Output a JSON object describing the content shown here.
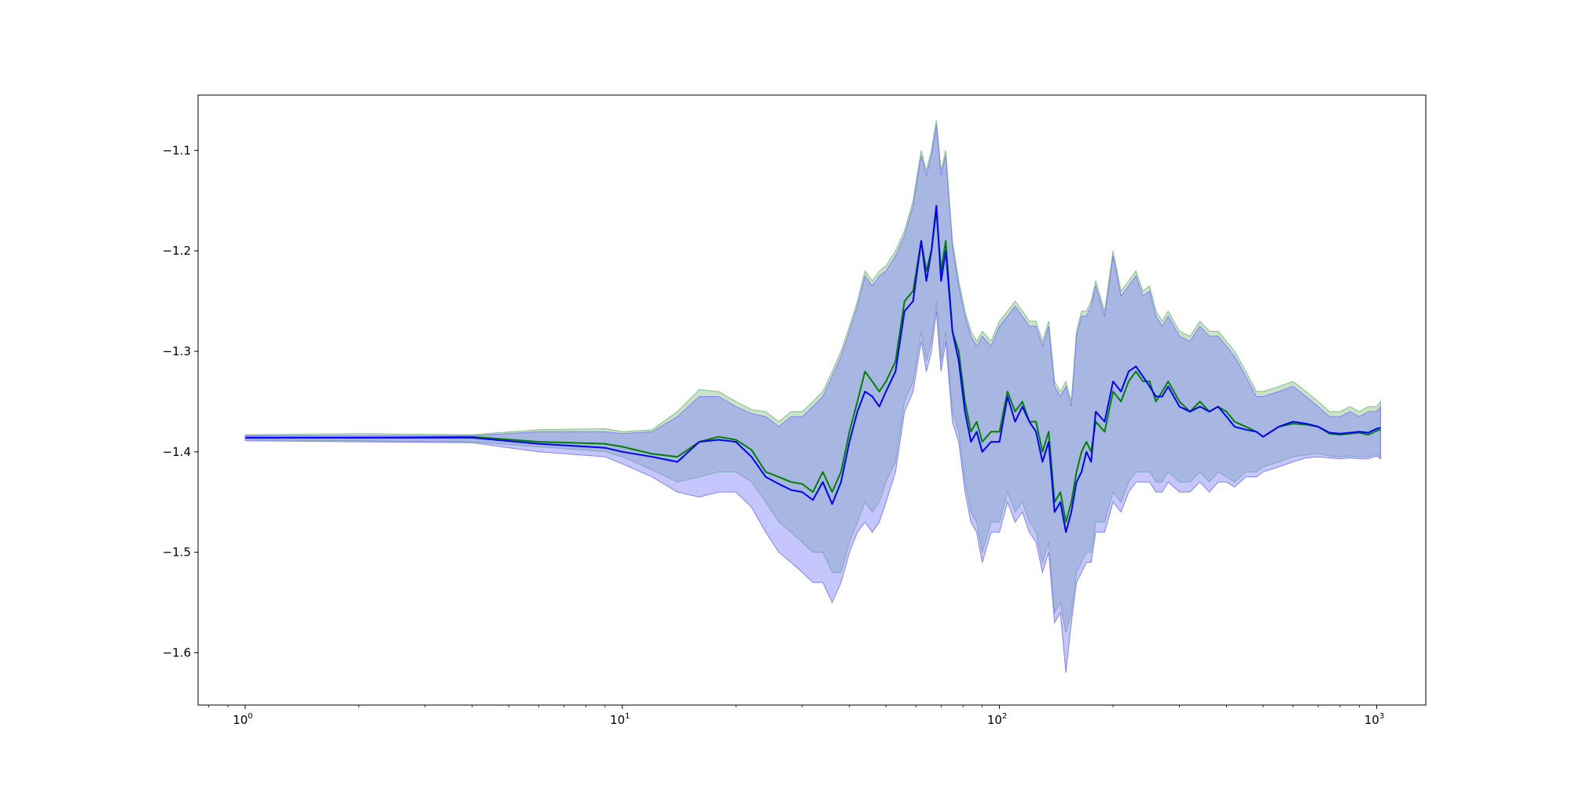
{
  "chart_data": {
    "type": "line",
    "title": "",
    "xlabel": "",
    "ylabel": "",
    "x_scale": "log",
    "xlim": [
      0.75,
      1350
    ],
    "ylim": [
      -1.652,
      -1.045
    ],
    "grid": false,
    "legend": "none",
    "x_ticks": [
      {
        "base": "10",
        "exp": "0",
        "value": 1
      },
      {
        "base": "10",
        "exp": "1",
        "value": 10
      },
      {
        "base": "10",
        "exp": "2",
        "value": 100
      },
      {
        "base": "10",
        "exp": "3",
        "value": 1000
      }
    ],
    "y_ticks": [
      {
        "label": "−1.1",
        "value": -1.1
      },
      {
        "label": "−1.2",
        "value": -1.2
      },
      {
        "label": "−1.3",
        "value": -1.3
      },
      {
        "label": "−1.4",
        "value": -1.4
      },
      {
        "label": "−1.5",
        "value": -1.5
      },
      {
        "label": "−1.6",
        "value": -1.6
      }
    ],
    "colors": {
      "green_line": "#008000",
      "blue_line": "#0000ff",
      "green_band": "#84c184",
      "blue_band": "#8080ff",
      "overlap_band": "#a1b4d4"
    },
    "series": [
      {
        "color": "green",
        "x": [
          1,
          2,
          4,
          6,
          9,
          10,
          12,
          14,
          16,
          18,
          20,
          22,
          24,
          26,
          28,
          30,
          32,
          34,
          36,
          38,
          40,
          42,
          44,
          46,
          48,
          50,
          53,
          56,
          59,
          62,
          64,
          66,
          68,
          70,
          72,
          75,
          78,
          81,
          84,
          87,
          90,
          95,
          100,
          105,
          110,
          115,
          120,
          125,
          130,
          135,
          140,
          145,
          150,
          155,
          160,
          165,
          170,
          175,
          180,
          190,
          200,
          210,
          220,
          230,
          240,
          250,
          260,
          270,
          280,
          300,
          320,
          340,
          360,
          380,
          400,
          420,
          450,
          480,
          500,
          550,
          600,
          650,
          700,
          750,
          800,
          850,
          900,
          950,
          1000,
          1024
        ],
        "y": [
          -1.386,
          -1.386,
          -1.385,
          -1.39,
          -1.392,
          -1.395,
          -1.402,
          -1.405,
          -1.39,
          -1.385,
          -1.388,
          -1.398,
          -1.42,
          -1.425,
          -1.43,
          -1.432,
          -1.44,
          -1.42,
          -1.44,
          -1.42,
          -1.38,
          -1.35,
          -1.32,
          -1.33,
          -1.34,
          -1.33,
          -1.31,
          -1.25,
          -1.24,
          -1.19,
          -1.22,
          -1.2,
          -1.16,
          -1.22,
          -1.19,
          -1.28,
          -1.3,
          -1.35,
          -1.38,
          -1.37,
          -1.39,
          -1.38,
          -1.38,
          -1.34,
          -1.36,
          -1.35,
          -1.37,
          -1.37,
          -1.4,
          -1.38,
          -1.45,
          -1.44,
          -1.47,
          -1.45,
          -1.42,
          -1.4,
          -1.39,
          -1.4,
          -1.37,
          -1.38,
          -1.34,
          -1.35,
          -1.33,
          -1.32,
          -1.33,
          -1.33,
          -1.35,
          -1.34,
          -1.33,
          -1.35,
          -1.36,
          -1.35,
          -1.36,
          -1.355,
          -1.36,
          -1.37,
          -1.375,
          -1.38,
          -1.385,
          -1.375,
          -1.372,
          -1.373,
          -1.375,
          -1.382,
          -1.383,
          -1.382,
          -1.381,
          -1.383,
          -1.379,
          -1.378
        ]
      },
      {
        "color": "blue",
        "x": [
          1,
          2,
          4,
          6,
          9,
          10,
          12,
          14,
          16,
          18,
          20,
          22,
          24,
          26,
          28,
          30,
          32,
          34,
          36,
          38,
          40,
          42,
          44,
          46,
          48,
          50,
          53,
          56,
          59,
          62,
          64,
          66,
          68,
          70,
          72,
          75,
          78,
          81,
          84,
          87,
          90,
          95,
          100,
          105,
          110,
          115,
          120,
          125,
          130,
          135,
          140,
          145,
          150,
          155,
          160,
          165,
          170,
          175,
          180,
          190,
          200,
          210,
          220,
          230,
          240,
          250,
          260,
          270,
          280,
          300,
          320,
          340,
          360,
          380,
          400,
          420,
          450,
          480,
          500,
          550,
          600,
          650,
          700,
          750,
          800,
          850,
          900,
          950,
          1000,
          1024
        ],
        "y": [
          -1.386,
          -1.386,
          -1.386,
          -1.392,
          -1.396,
          -1.4,
          -1.405,
          -1.41,
          -1.39,
          -1.388,
          -1.39,
          -1.405,
          -1.425,
          -1.432,
          -1.438,
          -1.44,
          -1.448,
          -1.43,
          -1.452,
          -1.43,
          -1.39,
          -1.36,
          -1.34,
          -1.345,
          -1.355,
          -1.34,
          -1.32,
          -1.26,
          -1.25,
          -1.19,
          -1.23,
          -1.2,
          -1.155,
          -1.23,
          -1.2,
          -1.28,
          -1.31,
          -1.36,
          -1.39,
          -1.38,
          -1.4,
          -1.39,
          -1.39,
          -1.345,
          -1.37,
          -1.355,
          -1.37,
          -1.38,
          -1.41,
          -1.39,
          -1.46,
          -1.45,
          -1.48,
          -1.46,
          -1.43,
          -1.42,
          -1.4,
          -1.41,
          -1.36,
          -1.37,
          -1.33,
          -1.34,
          -1.32,
          -1.315,
          -1.325,
          -1.335,
          -1.345,
          -1.345,
          -1.335,
          -1.355,
          -1.36,
          -1.355,
          -1.36,
          -1.355,
          -1.365,
          -1.375,
          -1.378,
          -1.38,
          -1.385,
          -1.375,
          -1.37,
          -1.372,
          -1.375,
          -1.381,
          -1.382,
          -1.381,
          -1.38,
          -1.381,
          -1.377,
          -1.376
        ]
      }
    ],
    "bands": [
      {
        "color": "green",
        "x": [
          1,
          2,
          4,
          6,
          9,
          10,
          12,
          14,
          16,
          18,
          20,
          22,
          24,
          26,
          28,
          30,
          32,
          34,
          36,
          38,
          40,
          42,
          44,
          46,
          48,
          50,
          53,
          56,
          59,
          62,
          64,
          66,
          68,
          70,
          72,
          75,
          78,
          81,
          84,
          87,
          90,
          95,
          100,
          105,
          110,
          115,
          120,
          125,
          130,
          135,
          140,
          145,
          150,
          155,
          160,
          165,
          170,
          175,
          180,
          190,
          200,
          210,
          220,
          230,
          240,
          250,
          260,
          270,
          280,
          300,
          320,
          340,
          360,
          380,
          400,
          420,
          450,
          480,
          500,
          550,
          600,
          650,
          700,
          750,
          800,
          850,
          900,
          950,
          1000,
          1024
        ],
        "upper": [
          -1.383,
          -1.382,
          -1.383,
          -1.378,
          -1.377,
          -1.38,
          -1.378,
          -1.36,
          -1.338,
          -1.34,
          -1.35,
          -1.358,
          -1.36,
          -1.37,
          -1.36,
          -1.36,
          -1.35,
          -1.34,
          -1.32,
          -1.3,
          -1.275,
          -1.25,
          -1.22,
          -1.23,
          -1.22,
          -1.215,
          -1.2,
          -1.18,
          -1.15,
          -1.1,
          -1.12,
          -1.1,
          -1.07,
          -1.12,
          -1.1,
          -1.19,
          -1.23,
          -1.26,
          -1.28,
          -1.29,
          -1.28,
          -1.29,
          -1.27,
          -1.26,
          -1.25,
          -1.26,
          -1.27,
          -1.27,
          -1.29,
          -1.27,
          -1.33,
          -1.34,
          -1.33,
          -1.35,
          -1.28,
          -1.26,
          -1.26,
          -1.25,
          -1.23,
          -1.26,
          -1.2,
          -1.24,
          -1.23,
          -1.22,
          -1.24,
          -1.235,
          -1.26,
          -1.27,
          -1.26,
          -1.28,
          -1.285,
          -1.27,
          -1.28,
          -1.28,
          -1.29,
          -1.3,
          -1.32,
          -1.34,
          -1.34,
          -1.335,
          -1.33,
          -1.34,
          -1.35,
          -1.36,
          -1.36,
          -1.355,
          -1.36,
          -1.355,
          -1.355,
          -1.35
        ],
        "lower": [
          -1.388,
          -1.389,
          -1.39,
          -1.395,
          -1.4,
          -1.405,
          -1.418,
          -1.43,
          -1.425,
          -1.42,
          -1.42,
          -1.43,
          -1.45,
          -1.47,
          -1.48,
          -1.49,
          -1.5,
          -1.5,
          -1.52,
          -1.52,
          -1.49,
          -1.47,
          -1.45,
          -1.46,
          -1.45,
          -1.43,
          -1.41,
          -1.35,
          -1.33,
          -1.28,
          -1.31,
          -1.29,
          -1.25,
          -1.31,
          -1.28,
          -1.36,
          -1.38,
          -1.43,
          -1.46,
          -1.47,
          -1.5,
          -1.47,
          -1.47,
          -1.44,
          -1.46,
          -1.45,
          -1.47,
          -1.48,
          -1.51,
          -1.49,
          -1.56,
          -1.55,
          -1.58,
          -1.56,
          -1.52,
          -1.51,
          -1.5,
          -1.5,
          -1.47,
          -1.47,
          -1.44,
          -1.45,
          -1.43,
          -1.42,
          -1.42,
          -1.42,
          -1.43,
          -1.43,
          -1.42,
          -1.43,
          -1.43,
          -1.42,
          -1.43,
          -1.42,
          -1.425,
          -1.43,
          -1.42,
          -1.42,
          -1.415,
          -1.41,
          -1.405,
          -1.403,
          -1.402,
          -1.404,
          -1.405,
          -1.404,
          -1.405,
          -1.405,
          -1.402,
          -1.405
        ]
      },
      {
        "color": "blue",
        "x": [
          1,
          2,
          4,
          6,
          9,
          10,
          12,
          14,
          16,
          18,
          20,
          22,
          24,
          26,
          28,
          30,
          32,
          34,
          36,
          38,
          40,
          42,
          44,
          46,
          48,
          50,
          53,
          56,
          59,
          62,
          64,
          66,
          68,
          70,
          72,
          75,
          78,
          81,
          84,
          87,
          90,
          95,
          100,
          105,
          110,
          115,
          120,
          125,
          130,
          135,
          140,
          145,
          150,
          155,
          160,
          165,
          170,
          175,
          180,
          190,
          200,
          210,
          220,
          230,
          240,
          250,
          260,
          270,
          280,
          300,
          320,
          340,
          360,
          380,
          400,
          420,
          450,
          480,
          500,
          550,
          600,
          650,
          700,
          750,
          800,
          850,
          900,
          950,
          1000,
          1024
        ],
        "upper": [
          -1.384,
          -1.384,
          -1.384,
          -1.38,
          -1.38,
          -1.382,
          -1.38,
          -1.365,
          -1.345,
          -1.345,
          -1.355,
          -1.362,
          -1.365,
          -1.375,
          -1.365,
          -1.365,
          -1.355,
          -1.345,
          -1.325,
          -1.305,
          -1.28,
          -1.255,
          -1.225,
          -1.235,
          -1.225,
          -1.22,
          -1.205,
          -1.185,
          -1.155,
          -1.105,
          -1.125,
          -1.105,
          -1.075,
          -1.125,
          -1.105,
          -1.195,
          -1.235,
          -1.265,
          -1.285,
          -1.295,
          -1.285,
          -1.295,
          -1.275,
          -1.265,
          -1.255,
          -1.265,
          -1.275,
          -1.275,
          -1.295,
          -1.275,
          -1.335,
          -1.345,
          -1.335,
          -1.355,
          -1.285,
          -1.265,
          -1.265,
          -1.255,
          -1.235,
          -1.265,
          -1.205,
          -1.245,
          -1.235,
          -1.225,
          -1.245,
          -1.24,
          -1.265,
          -1.275,
          -1.265,
          -1.285,
          -1.29,
          -1.275,
          -1.285,
          -1.285,
          -1.295,
          -1.305,
          -1.325,
          -1.345,
          -1.345,
          -1.34,
          -1.335,
          -1.345,
          -1.355,
          -1.365,
          -1.365,
          -1.36,
          -1.365,
          -1.36,
          -1.36,
          -1.355
        ],
        "lower": [
          -1.389,
          -1.39,
          -1.391,
          -1.4,
          -1.405,
          -1.412,
          -1.425,
          -1.44,
          -1.445,
          -1.44,
          -1.44,
          -1.455,
          -1.48,
          -1.5,
          -1.51,
          -1.52,
          -1.53,
          -1.53,
          -1.55,
          -1.53,
          -1.5,
          -1.48,
          -1.47,
          -1.48,
          -1.47,
          -1.45,
          -1.42,
          -1.36,
          -1.34,
          -1.29,
          -1.32,
          -1.3,
          -1.26,
          -1.32,
          -1.29,
          -1.37,
          -1.39,
          -1.44,
          -1.47,
          -1.48,
          -1.51,
          -1.48,
          -1.48,
          -1.45,
          -1.47,
          -1.46,
          -1.48,
          -1.49,
          -1.52,
          -1.5,
          -1.57,
          -1.56,
          -1.62,
          -1.57,
          -1.53,
          -1.52,
          -1.51,
          -1.51,
          -1.48,
          -1.48,
          -1.45,
          -1.46,
          -1.44,
          -1.43,
          -1.43,
          -1.43,
          -1.44,
          -1.44,
          -1.43,
          -1.44,
          -1.44,
          -1.43,
          -1.44,
          -1.43,
          -1.43,
          -1.435,
          -1.425,
          -1.425,
          -1.42,
          -1.415,
          -1.41,
          -1.406,
          -1.405,
          -1.406,
          -1.407,
          -1.406,
          -1.407,
          -1.407,
          -1.404,
          -1.407
        ]
      }
    ]
  }
}
